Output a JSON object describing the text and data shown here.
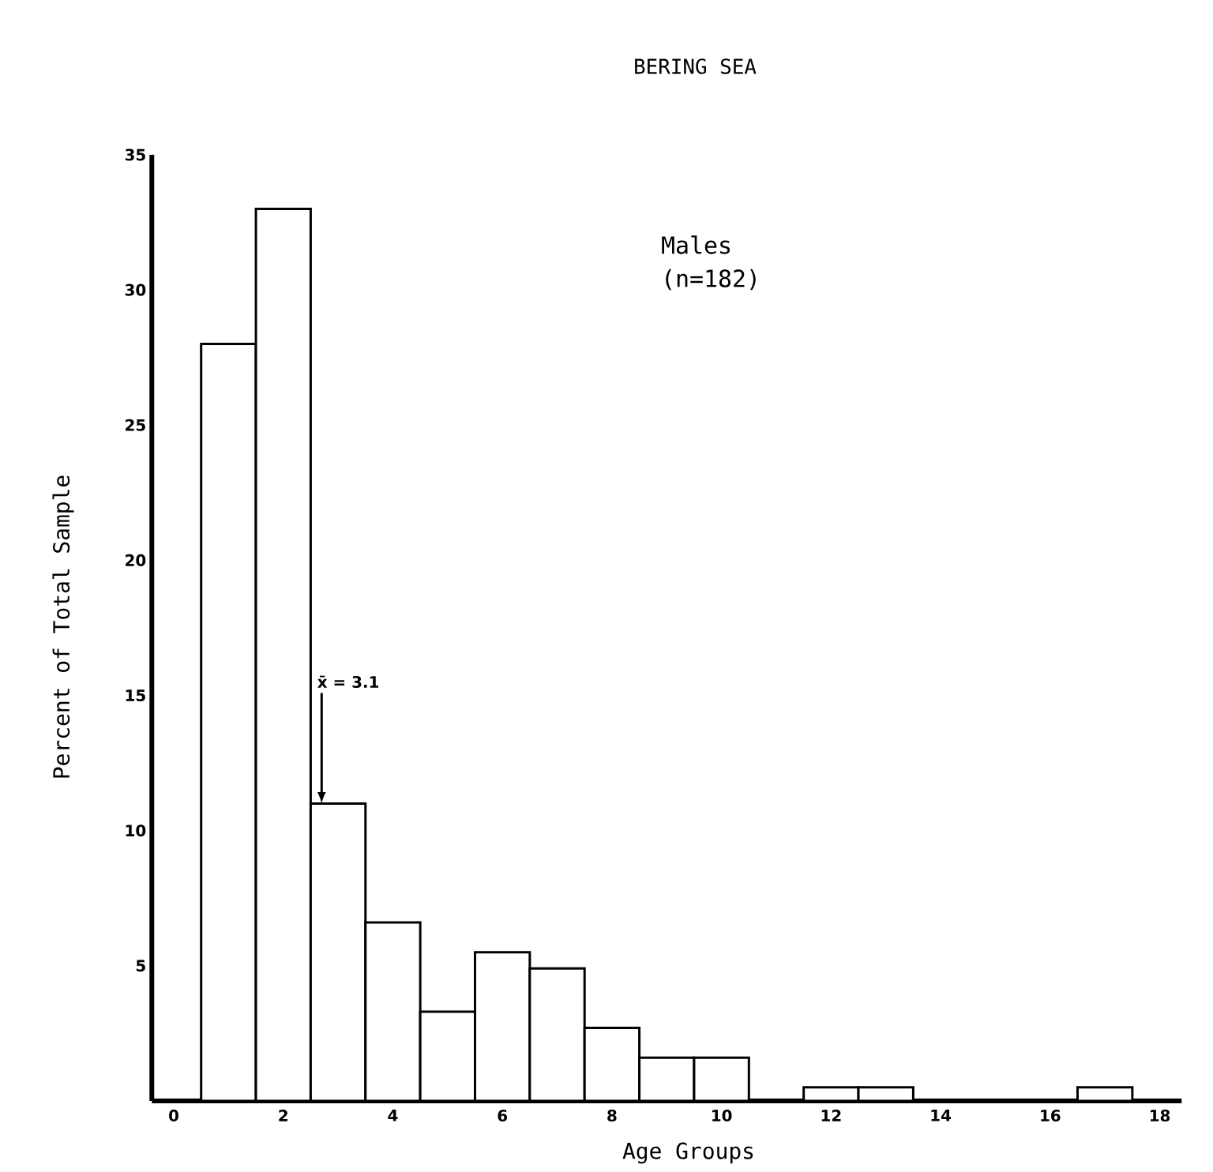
{
  "chart_data": {
    "type": "histogram",
    "title": "BERING SEA",
    "xlabel": "Age Groups",
    "ylabel": "Percent of Total Sample",
    "bins": [
      0.5,
      1.5,
      2.5,
      3.5,
      4.5,
      5.5,
      6.5,
      7.5,
      8.5,
      9.5,
      10.5,
      11.5,
      12.5,
      13.5,
      14.5,
      15.5,
      16.5,
      17.5
    ],
    "values": [
      28.0,
      33.0,
      11.0,
      6.6,
      3.3,
      5.5,
      4.9,
      2.7,
      1.6,
      1.6,
      0,
      0.5,
      0.5,
      0,
      0,
      0,
      0.5
    ],
    "color": "#ffffff",
    "xlim": [
      -0.4,
      18.4
    ],
    "xticks": [
      0,
      2,
      4,
      6,
      8,
      10,
      12,
      14,
      16,
      18
    ],
    "ylim": [
      0,
      35
    ],
    "yticks": [
      5,
      10,
      15,
      20,
      25,
      30,
      35
    ],
    "grid": false,
    "annotations": [
      {
        "text": "x̄ = 3.1",
        "x": 2.7,
        "y": 11
      },
      "Males",
      "(n=182)"
    ]
  }
}
